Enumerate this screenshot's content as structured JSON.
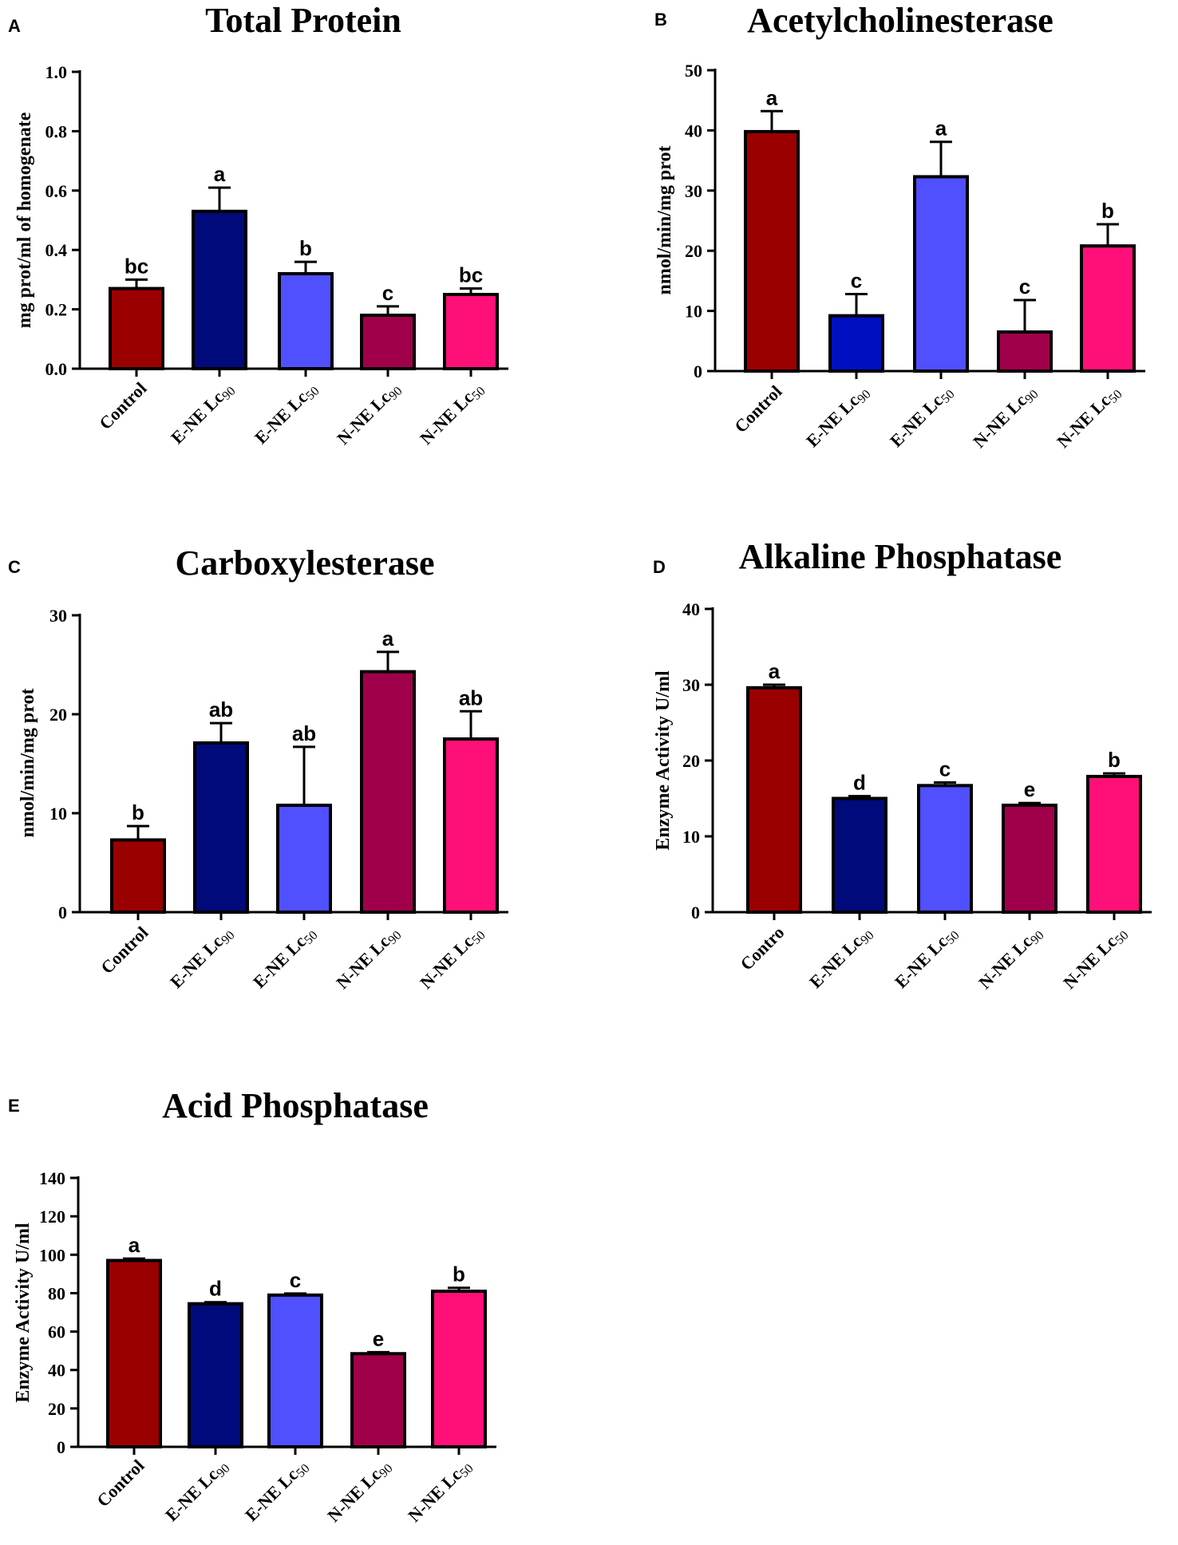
{
  "colors": {
    "control": "#9b0000",
    "e_ne_lc90": "#000a7a",
    "e_ne_lc50": "#5050ff",
    "n_ne_lc90": "#a0004a",
    "n_ne_lc50": "#ff1078",
    "axis": "#000000"
  },
  "chart_data": [
    {
      "panel": "A",
      "type": "bar",
      "title": "Total Protein",
      "ylabel": "mg prot/ml of homogenate",
      "xlabel": "",
      "ylim": [
        0,
        1.0
      ],
      "yticks": [
        "0.0",
        "0.2",
        "0.4",
        "0.6",
        "0.8",
        "1.0"
      ],
      "categories": [
        "Control",
        "E-NE Lc90",
        "E-NE Lc50",
        "N-NE Lc90",
        "N-NE Lc50"
      ],
      "category_display": [
        {
          "main": "Control",
          "sub": ""
        },
        {
          "main": "E-NE Lc",
          "sub": "90"
        },
        {
          "main": "E-NE Lc",
          "sub": "50"
        },
        {
          "main": "N-NE Lc",
          "sub": "90"
        },
        {
          "main": "N-NE Lc",
          "sub": "50"
        }
      ],
      "values": [
        0.27,
        0.53,
        0.32,
        0.18,
        0.25
      ],
      "errors": [
        0.03,
        0.08,
        0.04,
        0.03,
        0.02
      ],
      "significance": [
        "bc",
        "a",
        "b",
        "c",
        "bc"
      ],
      "grid": false
    },
    {
      "panel": "B",
      "type": "bar",
      "title": "Acetylcholinesterase",
      "ylabel": "nmol/min/mg prot",
      "xlabel": "",
      "ylim": [
        0,
        50
      ],
      "yticks": [
        "0",
        "10",
        "20",
        "30",
        "40",
        "50"
      ],
      "categories": [
        "Control",
        "E-NE Lc90",
        "E-NE Lc50",
        "N-NE Lc90",
        "N-NE Lc50"
      ],
      "category_display": [
        {
          "main": "Control",
          "sub": ""
        },
        {
          "main": "E-NE Lc",
          "sub": "90"
        },
        {
          "main": "E-NE Lc",
          "sub": "50"
        },
        {
          "main": "N-NE Lc",
          "sub": "90"
        },
        {
          "main": "N-NE Lc",
          "sub": "50"
        }
      ],
      "values": [
        39.8,
        9.2,
        32.3,
        6.5,
        20.8
      ],
      "errors": [
        3.4,
        3.6,
        5.8,
        5.3,
        3.6
      ],
      "significance": [
        "a",
        "c",
        "a",
        "c",
        "b"
      ],
      "bar_colors_override": {
        "1": "#0010c0"
      },
      "grid": false
    },
    {
      "panel": "C",
      "type": "bar",
      "title": "Carboxylesterase",
      "ylabel": "nmol/min/mg prot",
      "xlabel": "",
      "ylim": [
        0,
        30
      ],
      "yticks": [
        "0",
        "10",
        "20",
        "30"
      ],
      "categories": [
        "Control",
        "E-NE Lc90",
        "E-NE Lc50",
        "N-NE Lc90",
        "N-NE Lc50"
      ],
      "category_display": [
        {
          "main": "Control",
          "sub": ""
        },
        {
          "main": "E-NE Lc",
          "sub": "90"
        },
        {
          "main": "E-NE Lc",
          "sub": "50"
        },
        {
          "main": "N-NE Lc",
          "sub": "90"
        },
        {
          "main": "N-NE Lc",
          "sub": "50"
        }
      ],
      "values": [
        7.3,
        17.1,
        10.8,
        24.3,
        17.5
      ],
      "errors": [
        1.4,
        2.0,
        5.9,
        2.0,
        2.8
      ],
      "significance": [
        "b",
        "ab",
        "ab",
        "a",
        "ab"
      ],
      "grid": false
    },
    {
      "panel": "D",
      "type": "bar",
      "title": "Alkaline Phosphatase",
      "ylabel": "Enzyme Activity U/ml",
      "xlabel": "",
      "ylim": [
        0,
        40
      ],
      "yticks": [
        "0",
        "10",
        "20",
        "30",
        "40"
      ],
      "categories": [
        "Contro",
        "E-NE Lc90",
        "E-NE Lc50",
        "N-NE Lc90",
        "N-NE Lc50"
      ],
      "category_display": [
        {
          "main": "Contro",
          "sub": ""
        },
        {
          "main": "E-NE Lc",
          "sub": "90"
        },
        {
          "main": "E-NE Lc",
          "sub": "50"
        },
        {
          "main": "N-NE Lc",
          "sub": "90"
        },
        {
          "main": "N-NE Lc",
          "sub": "50"
        }
      ],
      "values": [
        29.6,
        15.0,
        16.7,
        14.1,
        17.9
      ],
      "errors": [
        0.4,
        0.3,
        0.4,
        0.3,
        0.4
      ],
      "significance": [
        "a",
        "d",
        "c",
        "e",
        "b"
      ],
      "grid": false
    },
    {
      "panel": "E",
      "type": "bar",
      "title": "Acid Phosphatase",
      "ylabel": "Enzyme Activity U/ml",
      "xlabel": "",
      "ylim": [
        0,
        140
      ],
      "yticks": [
        "0",
        "20",
        "40",
        "60",
        "80",
        "100",
        "120",
        "140"
      ],
      "categories": [
        "Control",
        "E-NE Lc90",
        "E-NE Lc50",
        "N-NE Lc90",
        "N-NE Lc50"
      ],
      "category_display": [
        {
          "main": "Control",
          "sub": ""
        },
        {
          "main": "E-NE Lc",
          "sub": "90"
        },
        {
          "main": "E-NE Lc",
          "sub": "50"
        },
        {
          "main": "N-NE Lc",
          "sub": "90"
        },
        {
          "main": "N-NE Lc",
          "sub": "50"
        }
      ],
      "values": [
        97.0,
        74.5,
        79.0,
        48.5,
        81.0
      ],
      "errors": [
        1.0,
        0.8,
        0.8,
        0.8,
        1.8
      ],
      "significance": [
        "a",
        "d",
        "c",
        "e",
        "b"
      ],
      "grid": false
    }
  ]
}
